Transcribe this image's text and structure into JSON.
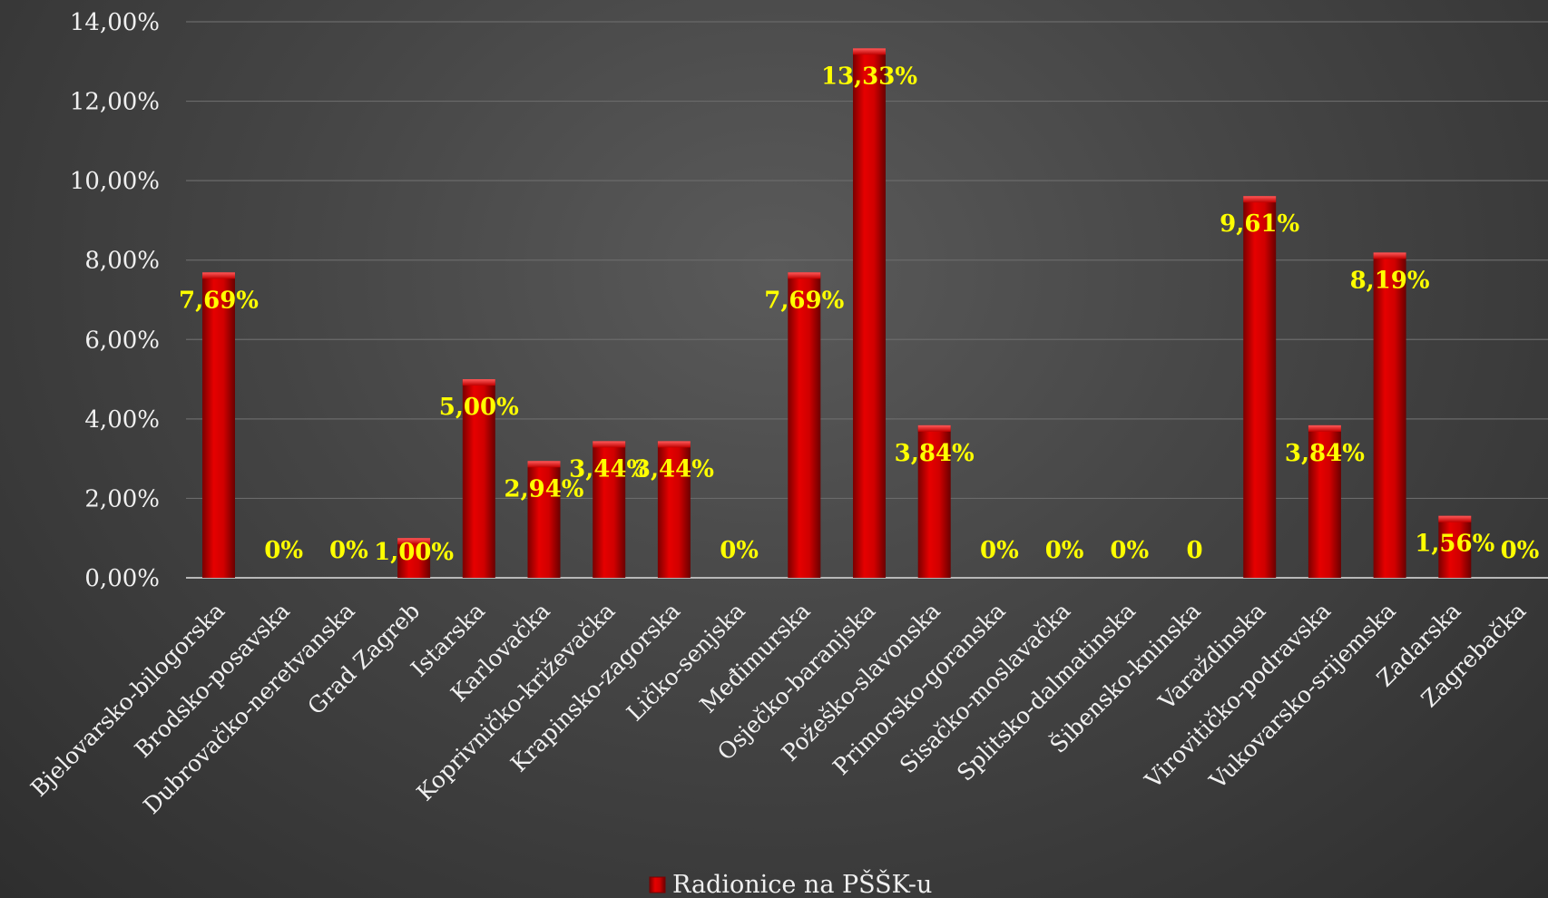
{
  "chart_data": {
    "type": "bar",
    "categories": [
      "Bjelovarsko-bilogorska",
      "Brodsko-posavska",
      "Dubrovačko-neretvanska",
      "Grad Zagreb",
      "Istarska",
      "Karlovačka",
      "Koprivničko-križevačka",
      "Krapinsko-zagorska",
      "Ličko-senjska",
      "Međimurska",
      "Osječko-baranjska",
      "Požeško-slavonska",
      "Primorsko-goranska",
      "Sisačko-moslavačka",
      "Splitsko-dalmatinska",
      "Šibensko-kninska",
      "Varaždinska",
      "Virovitičko-podravska",
      "Vukovarsko-srijemska",
      "Zadarska",
      "Zagrebačka"
    ],
    "series": [
      {
        "name": "Radionice na PŠŠK-u",
        "values": [
          7.69,
          0,
          0,
          1.0,
          5.0,
          2.94,
          3.44,
          3.44,
          0,
          7.69,
          13.33,
          3.84,
          0,
          0,
          0,
          0,
          9.61,
          3.84,
          8.19,
          1.56,
          0
        ],
        "data_labels": [
          "7,69%",
          "0%",
          "0%",
          "1,00%",
          "5,00%",
          "2,94%",
          "3,44%",
          "3,44%",
          "0%",
          "7,69%",
          "13,33%",
          "3,84%",
          "0%",
          "0%",
          "0%",
          "0",
          "9,61%",
          "3,84%",
          "8,19%",
          "1,56%",
          "0%"
        ]
      }
    ],
    "y_ticks": [
      "0,00%",
      "2,00%",
      "4,00%",
      "6,00%",
      "8,00%",
      "10,00%",
      "12,00%",
      "14,00%"
    ],
    "ylim": [
      0,
      14
    ],
    "grid": true,
    "legend": "bottom-center",
    "colors": {
      "bar": "#d40000",
      "data_label": "#ffff00",
      "text": "#f0f0f0",
      "grid": "#6a6a6a"
    }
  }
}
